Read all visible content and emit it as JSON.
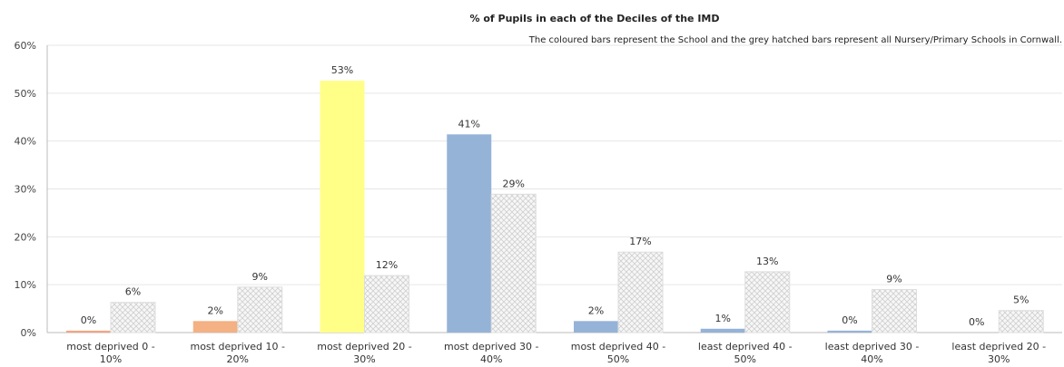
{
  "chart_data": {
    "type": "bar",
    "title": "% of Pupils in each of the Deciles of the IMD",
    "subtitle": "The coloured bars represent the School and the grey hatched bars represent all Nursery/Primary Schools in Cornwall.",
    "categories": [
      [
        "most deprived 0 -",
        "10%"
      ],
      [
        "most deprived 10 -",
        "20%"
      ],
      [
        "most deprived 20 -",
        "30%"
      ],
      [
        "most deprived 30 -",
        "40%"
      ],
      [
        "most deprived 40 -",
        "50%"
      ],
      [
        "least deprived 40 -",
        "50%"
      ],
      [
        "least deprived 30 -",
        "40%"
      ],
      [
        "least deprived 20 -",
        "30%"
      ]
    ],
    "series": [
      {
        "values": [
          0.4,
          2.4,
          52.6,
          41.4,
          2.4,
          0.8,
          0.4,
          0
        ],
        "labels": [
          "0%",
          "2%",
          "53%",
          "41%",
          "2%",
          "1%",
          "0%",
          "0%"
        ],
        "colors": [
          "#f4a582",
          "#f4b183",
          "#ffff88",
          "#95b3d7",
          "#95b3d7",
          "#95b3d7",
          "#95b3d7",
          "#95b3d7"
        ]
      },
      {
        "values": [
          6.3,
          9.5,
          11.9,
          28.9,
          16.8,
          12.7,
          9.0,
          4.6
        ],
        "labels": [
          "6%",
          "9%",
          "12%",
          "29%",
          "17%",
          "13%",
          "9%",
          "5%"
        ],
        "color": "#dddddd"
      }
    ],
    "ylim": [
      0,
      60
    ],
    "yticks": [
      0,
      10,
      20,
      30,
      40,
      50,
      60
    ],
    "ytick_labels": [
      "0%",
      "10%",
      "20%",
      "30%",
      "40%",
      "50%",
      "60%"
    ],
    "grid": true,
    "legend": "none"
  }
}
